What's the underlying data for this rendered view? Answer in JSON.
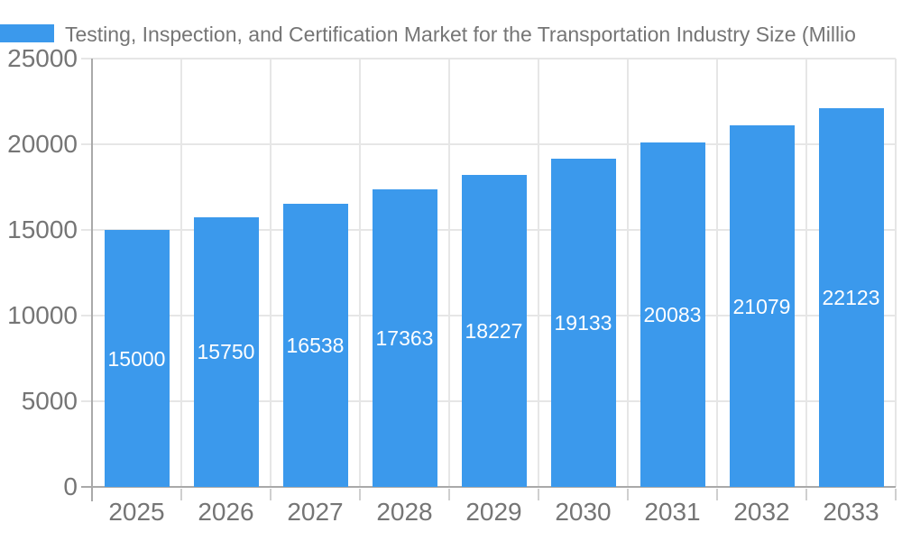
{
  "chart_data": {
    "type": "bar",
    "title": "Testing, Inspection, and Certification Market for the Transportation Industry Size (Millio",
    "categories": [
      "2025",
      "2026",
      "2027",
      "2028",
      "2029",
      "2030",
      "2031",
      "2032",
      "2033"
    ],
    "values": [
      15000,
      15750,
      16538,
      17363,
      18227,
      19133,
      20083,
      21079,
      22123
    ],
    "value_labels": [
      "15000",
      "15750",
      "16538",
      "17363",
      "18227",
      "19133",
      "20083",
      "21079",
      "22123"
    ],
    "y_ticks": [
      0,
      5000,
      10000,
      15000,
      20000,
      25000
    ],
    "y_tick_labels": [
      "0",
      "5000",
      "10000",
      "15000",
      "20000",
      "25000"
    ],
    "ylim": [
      0,
      25000
    ],
    "xlabel": "",
    "ylabel": "",
    "grid": "horizontal and vertical",
    "legend_position": "top-left",
    "colors": {
      "bar": "#3B99EC",
      "bar_label": "#FFFFFF",
      "axis_text": "#757575",
      "title_text": "#757575",
      "grid_line": "#E6E6E6",
      "axis_line": "#A9A9A9",
      "tick_mark": "#CFCFCF",
      "background": "#FFFFFF"
    }
  }
}
